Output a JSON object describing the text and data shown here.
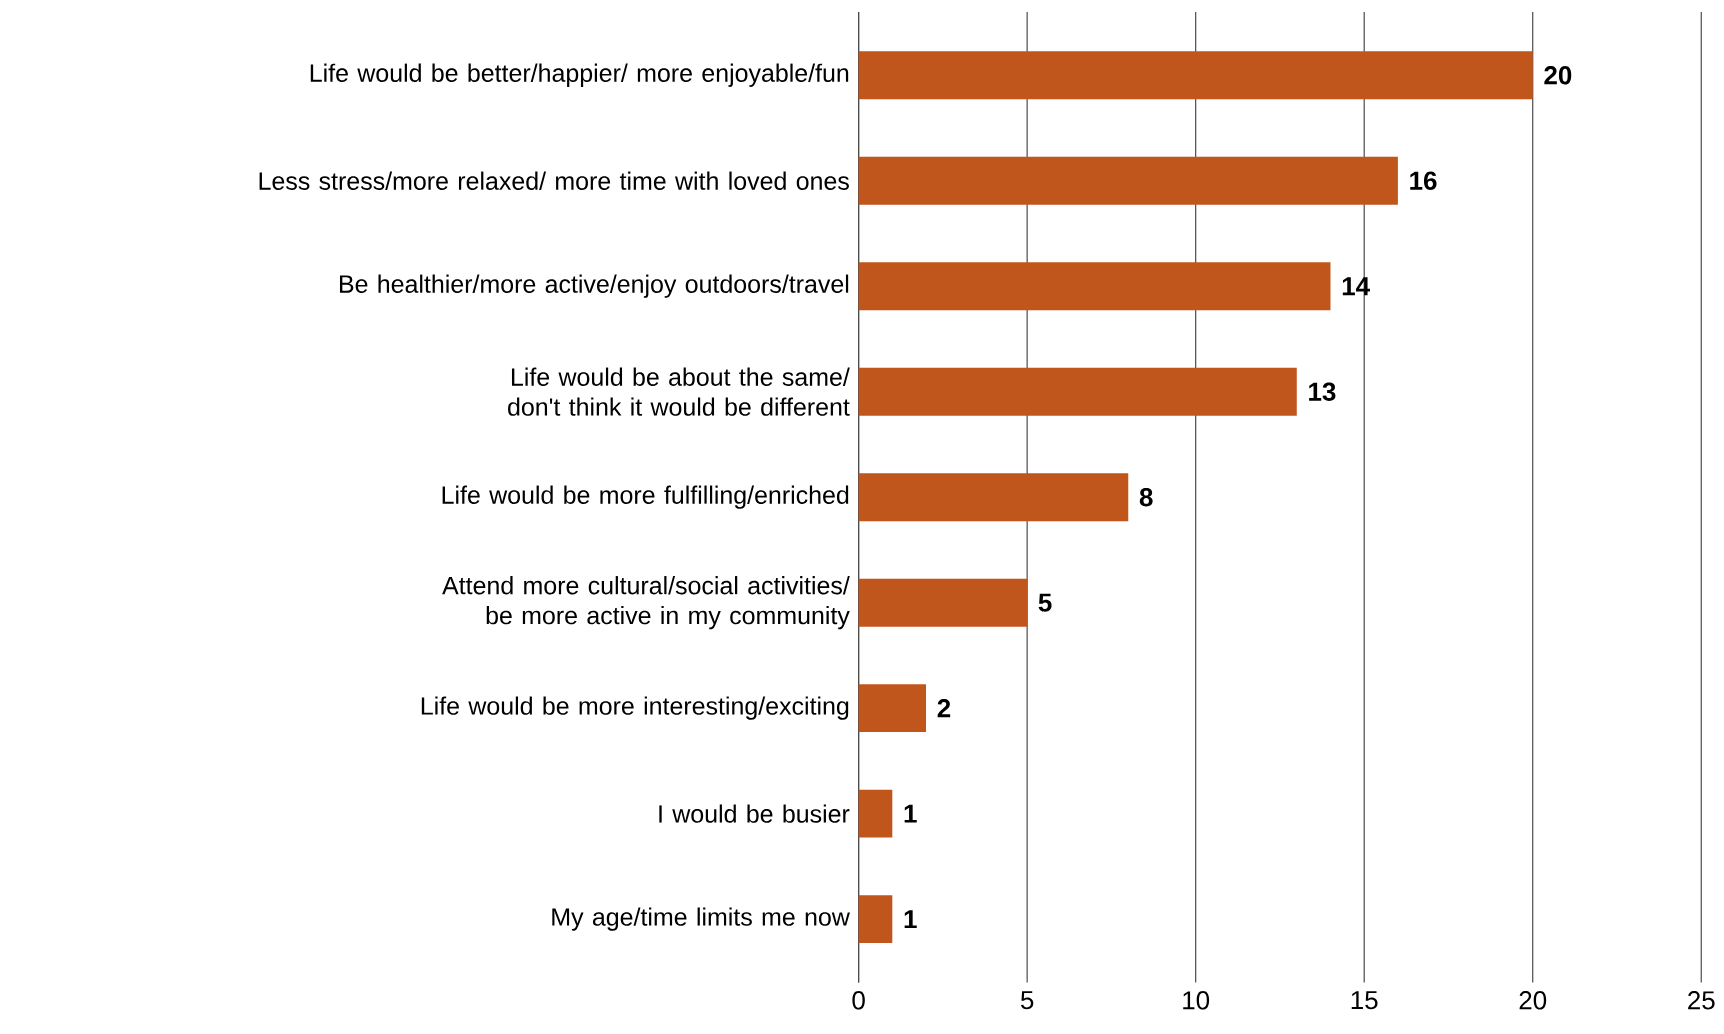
{
  "chart_data": {
    "type": "bar",
    "orientation": "horizontal",
    "categories": [
      "Life would be better/happier/ more enjoyable/fun",
      "Less stress/more relaxed/ more time with loved ones",
      "Be healthier/more active/enjoy outdoors/travel",
      "Life would be about the same/ don't think it would be different",
      "Life would be more fulfilling/enriched",
      "Attend more cultural/social activities/ be more active in my community",
      "Life would be more interesting/exciting",
      "I would be busier",
      "My age/time limits me now"
    ],
    "values": [
      20,
      16,
      14,
      13,
      8,
      5,
      2,
      1,
      1
    ],
    "color": "#c0561b",
    "data_labels": true,
    "grid": "x",
    "xlim": [
      0,
      25
    ],
    "xticks": [
      0,
      5,
      10,
      15,
      20,
      25
    ]
  }
}
